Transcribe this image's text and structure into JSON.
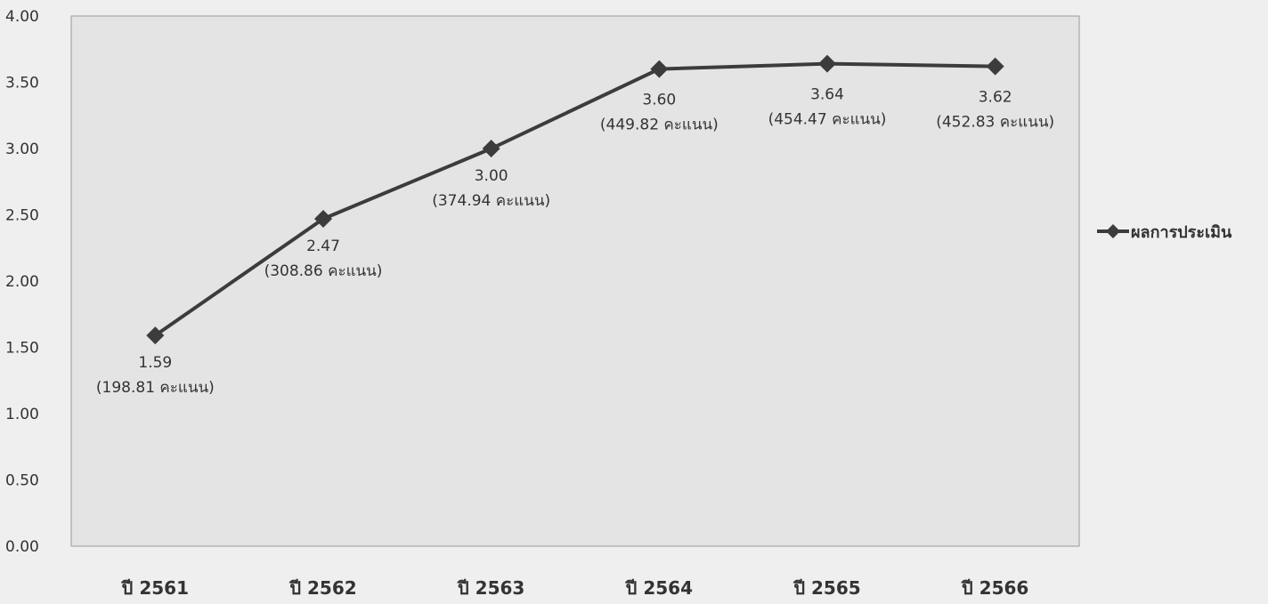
{
  "chart_data": {
    "type": "line",
    "title": "",
    "xlabel": "",
    "ylabel": "",
    "categories": [
      "ปี 2561",
      "ปี 2562",
      "ปี 2563",
      "ปี 2564",
      "ปี 2565",
      "ปี 2566"
    ],
    "ylim": [
      0,
      4
    ],
    "yticks": [
      "0.00",
      "0.50",
      "1.00",
      "1.50",
      "2.00",
      "2.50",
      "3.00",
      "3.50",
      "4.00"
    ],
    "series": [
      {
        "name": "ผลการประเมิน",
        "values": [
          1.59,
          2.47,
          3.0,
          3.6,
          3.64,
          3.62
        ],
        "value_labels": [
          "1.59",
          "2.47",
          "3.00",
          "3.60",
          "3.64",
          "3.62"
        ],
        "score_labels": [
          "(198.81 คะแนน)",
          "(308.86 คะแนน)",
          "(374.94 คะแนน)",
          "(449.82 คะแนน)",
          "(454.47 คะแนน)",
          "(452.83 คะแนน)"
        ]
      }
    ],
    "legend_position": "right",
    "grid": false,
    "colors": {
      "line": "#3c3c3c",
      "marker": "#3c3c3c",
      "plot_background": "#e4e4e4",
      "page_background": "#efefef",
      "axis": "#9a9a9a",
      "text": "#333333"
    }
  }
}
